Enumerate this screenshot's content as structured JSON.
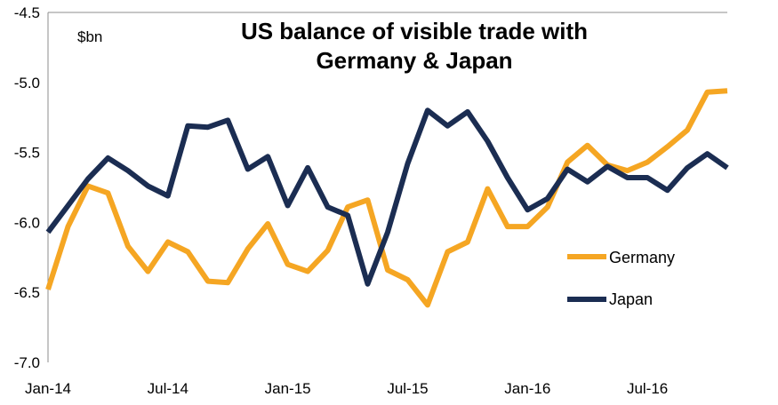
{
  "chart_data": {
    "type": "line",
    "title_line1": "US balance of visible trade with",
    "title_line2": "Germany & Japan",
    "unit_label": "$bn",
    "ylim": [
      -7.0,
      -4.5
    ],
    "yticks": [
      "-4.5",
      "-5.0",
      "-5.5",
      "-6.0",
      "-6.5",
      "-7.0"
    ],
    "ytick_values": [
      -4.5,
      -5.0,
      -5.5,
      -6.0,
      -6.5,
      -7.0
    ],
    "xtick_labels": [
      "Jan-14",
      "Jul-14",
      "Jan-15",
      "Jul-15",
      "Jan-16",
      "Jul-16"
    ],
    "xtick_index": [
      0,
      6,
      12,
      18,
      24,
      30
    ],
    "grid": false,
    "legend_position": "right",
    "x": [
      "Jan-14",
      "Feb-14",
      "Mar-14",
      "Apr-14",
      "May-14",
      "Jun-14",
      "Jul-14",
      "Aug-14",
      "Sep-14",
      "Oct-14",
      "Nov-14",
      "Dec-14",
      "Jan-15",
      "Feb-15",
      "Mar-15",
      "Apr-15",
      "May-15",
      "Jun-15",
      "Jul-15",
      "Aug-15",
      "Sep-15",
      "Oct-15",
      "Nov-15",
      "Dec-15",
      "Jan-16",
      "Feb-16",
      "Mar-16",
      "Apr-16",
      "May-16",
      "Jun-16",
      "Jul-16",
      "Aug-16",
      "Sep-16",
      "Oct-16",
      "Nov-16"
    ],
    "series": [
      {
        "name": "Germany",
        "color": "#F5A623",
        "values": [
          -6.48,
          -6.03,
          -5.74,
          -5.79,
          -6.17,
          -6.35,
          -6.14,
          -6.21,
          -6.42,
          -6.43,
          -6.19,
          -6.01,
          -6.3,
          -6.35,
          -6.2,
          -5.89,
          -5.84,
          -6.34,
          -6.41,
          -6.59,
          -6.21,
          -6.14,
          -5.76,
          -6.03,
          -6.03,
          -5.89,
          -5.57,
          -5.45,
          -5.59,
          -5.63,
          -5.57,
          -5.46,
          -5.34,
          -5.07,
          -5.06
        ]
      },
      {
        "name": "Japan",
        "color": "#1B2D52",
        "values": [
          -6.07,
          -5.88,
          -5.69,
          -5.54,
          -5.63,
          -5.74,
          -5.81,
          -5.31,
          -5.32,
          -5.27,
          -5.62,
          -5.53,
          -5.88,
          -5.61,
          -5.89,
          -5.95,
          -6.44,
          -6.07,
          -5.58,
          -5.2,
          -5.31,
          -5.21,
          -5.42,
          -5.68,
          -5.91,
          -5.83,
          -5.62,
          -5.71,
          -5.6,
          -5.68,
          -5.68,
          -5.77,
          -5.61,
          -5.51,
          -5.61
        ]
      }
    ]
  }
}
